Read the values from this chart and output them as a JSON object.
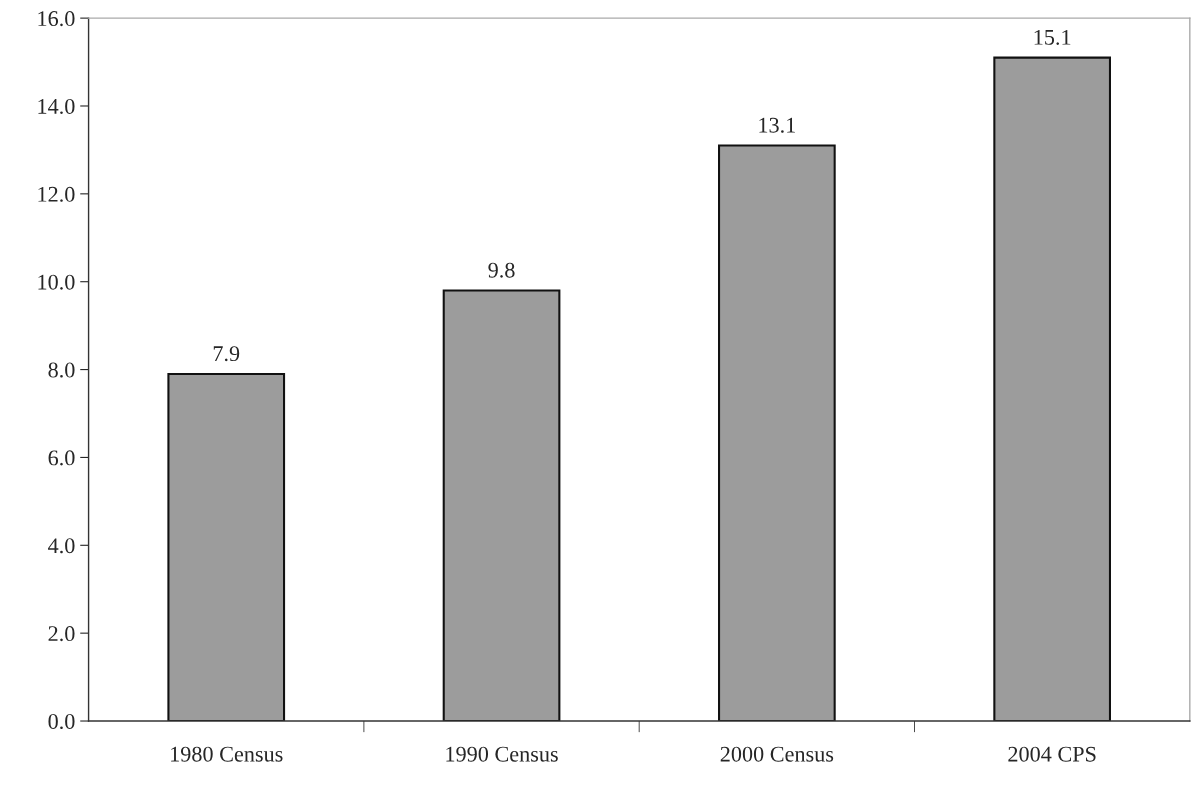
{
  "chart_data": {
    "type": "bar",
    "categories": [
      "1980 Census",
      "1990 Census",
      "2000 Census",
      "2004 CPS"
    ],
    "values": [
      7.9,
      9.8,
      13.1,
      15.1
    ],
    "color": "#9c9c9c",
    "ylim": [
      0,
      16
    ],
    "yticks": [
      {
        "value": 0,
        "label": "0.0"
      },
      {
        "value": 2,
        "label": "2.0"
      },
      {
        "value": 4,
        "label": "4.0"
      },
      {
        "value": 6,
        "label": "6.0"
      },
      {
        "value": 8,
        "label": "8.0"
      },
      {
        "value": 10,
        "label": "10.0"
      },
      {
        "value": 12,
        "label": "12.0"
      },
      {
        "value": 14,
        "label": "14.0"
      },
      {
        "value": 16,
        "label": "16.0"
      }
    ],
    "data_labels": true,
    "grid": false,
    "legend": false
  }
}
